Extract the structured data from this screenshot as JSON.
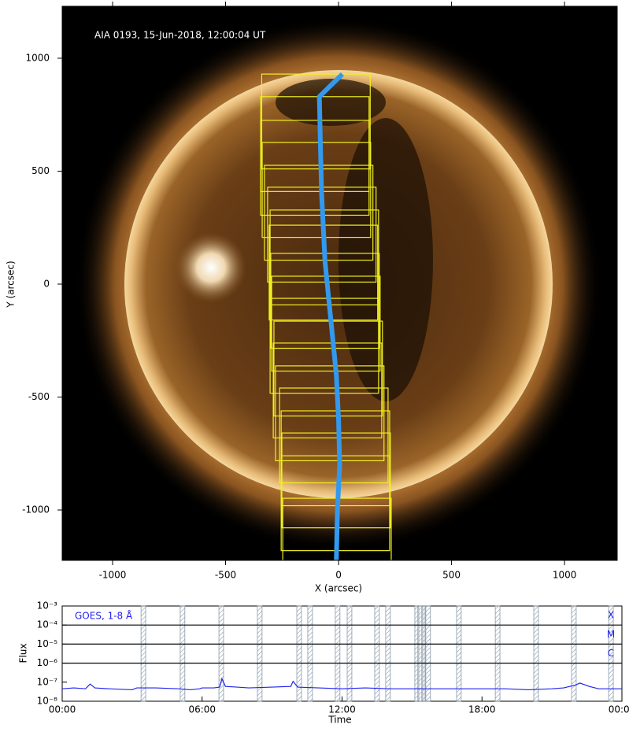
{
  "chart_data": [
    {
      "type": "image",
      "title": "AIA 0193, 15-Jun-2018, 12:00:04 UT",
      "x_label": "X (arcsec)",
      "y_label": "Y (arcsec)",
      "xlim": [
        -1223,
        1233
      ],
      "ylim": [
        -1223,
        1230
      ],
      "xticks": [
        -1000,
        -500,
        0,
        500,
        1000
      ],
      "yticks": [
        -1000,
        -500,
        0,
        500,
        1000
      ],
      "box_color": "#f0f020",
      "box_width": 480,
      "box_height": 420,
      "boxes": [
        [
          -340,
          930
        ],
        [
          -345,
          830
        ],
        [
          -345,
          725
        ],
        [
          -338,
          627
        ],
        [
          -328,
          526
        ],
        [
          -314,
          429
        ],
        [
          -303,
          328
        ],
        [
          -307,
          261
        ],
        [
          -300,
          136
        ],
        [
          -296,
          35
        ],
        [
          -303,
          -63
        ],
        [
          -286,
          -164
        ],
        [
          -289,
          -261
        ],
        [
          -279,
          -362
        ],
        [
          -261,
          -460
        ],
        [
          -254,
          -561
        ],
        [
          -251,
          -659
        ],
        [
          -254,
          -760
        ],
        [
          -247,
          -948
        ]
      ],
      "color": "#3399ee",
      "x": [
        17,
        -85,
        -80,
        -75,
        -60,
        -50,
        -30,
        -10,
        0,
        5,
        -5,
        -10
      ],
      "values": [
        930,
        830,
        600,
        400,
        100,
        0,
        -200,
        -400,
        -600,
        -800,
        -1000,
        -1230
      ]
    },
    {
      "type": "line",
      "label": "GOES, 1-8 Å",
      "x_label": "Time",
      "y_label": "Flux",
      "log_y": true,
      "color": "#2222ee",
      "xlim": [
        0,
        24
      ],
      "ylim": [
        1e-08,
        0.001
      ],
      "xticks": [
        {
          "value": 0,
          "label": "00:00"
        },
        {
          "value": 6,
          "label": "06:00"
        },
        {
          "value": 12,
          "label": "12:00"
        },
        {
          "value": 18,
          "label": "18:00"
        },
        {
          "value": 24,
          "label": "00:00"
        }
      ],
      "yticks": [
        {
          "value": 1e-08,
          "label": "10⁻⁸"
        },
        {
          "value": 1e-07,
          "label": "10⁻⁷"
        },
        {
          "value": 1e-06,
          "label": "10⁻⁶"
        },
        {
          "value": 1e-05,
          "label": "10⁻⁵"
        },
        {
          "value": 0.0001,
          "label": "10⁻⁴"
        },
        {
          "value": 0.001,
          "label": "10⁻³"
        }
      ],
      "class_lines": [
        {
          "value": 0.0001,
          "label": "X"
        },
        {
          "value": 1e-05,
          "label": "M"
        },
        {
          "value": 1e-06,
          "label": "C"
        }
      ],
      "windows": [
        [
          3.38,
          3.58
        ],
        [
          5.06,
          5.26
        ],
        [
          6.72,
          6.92
        ],
        [
          8.37,
          8.57
        ],
        [
          10.06,
          10.26
        ],
        [
          10.53,
          10.73
        ],
        [
          11.71,
          11.91
        ],
        [
          12.22,
          12.42
        ],
        [
          13.4,
          13.6
        ],
        [
          13.87,
          14.07
        ],
        [
          15.12,
          15.25
        ],
        [
          15.29,
          15.42
        ],
        [
          15.46,
          15.56
        ],
        [
          15.59,
          15.79
        ],
        [
          16.91,
          17.11
        ],
        [
          18.57,
          18.77
        ],
        [
          20.22,
          20.42
        ],
        [
          21.84,
          22.04
        ],
        [
          23.43,
          23.63
        ]
      ],
      "x": [
        0,
        0.5,
        1,
        1.2,
        1.4,
        2,
        3,
        3.2,
        4,
        5,
        5.5,
        5.9,
        6,
        6.5,
        6.75,
        6.85,
        7,
        7.5,
        8,
        9,
        9.8,
        9.9,
        10.1,
        11,
        12,
        13,
        14,
        15,
        16,
        17,
        18,
        19,
        20,
        21,
        21.5,
        22,
        22.2,
        22.6,
        23,
        24
      ],
      "values": [
        4.5e-08,
        5e-08,
        4.5e-08,
        8e-08,
        5e-08,
        4.5e-08,
        4e-08,
        5e-08,
        5e-08,
        4.5e-08,
        4e-08,
        4.5e-08,
        5e-08,
        5e-08,
        5.5e-08,
        1.5e-07,
        6e-08,
        5.5e-08,
        5e-08,
        5.5e-08,
        6e-08,
        1.1e-07,
        5.5e-08,
        5e-08,
        4.5e-08,
        5e-08,
        4.5e-08,
        4.5e-08,
        4.5e-08,
        4.5e-08,
        4.5e-08,
        4.5e-08,
        4e-08,
        4.5e-08,
        5e-08,
        7e-08,
        9e-08,
        6e-08,
        4.5e-08,
        4.5e-08
      ]
    }
  ]
}
